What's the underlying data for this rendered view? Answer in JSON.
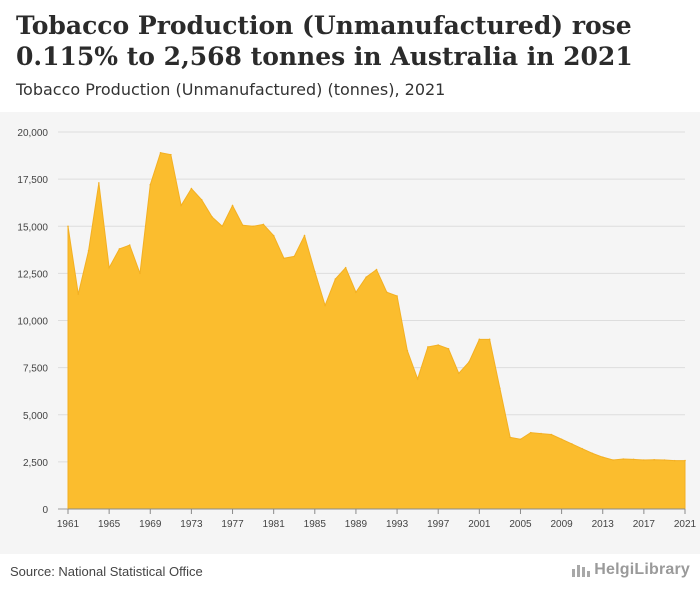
{
  "header": {
    "title": "Tobacco Production (Unmanufactured) rose 0.115% to 2,568 tonnes in Australia in 2021",
    "subtitle": "Tobacco Production (Unmanufactured) (tonnes), 2021"
  },
  "footer": {
    "source": "Source: National Statistical Office",
    "logo_text": "HelgiLibrary"
  },
  "colors": {
    "area_fill": "#fbbd2e",
    "area_stroke": "#f3b023",
    "grid": "#dddddd",
    "plot_background": "#f5f5f5"
  },
  "chart_data": {
    "type": "area",
    "title": "Tobacco Production (Unmanufactured) rose 0.115% to 2,568 tonnes in Australia in 2021",
    "subtitle": "Tobacco Production (Unmanufactured) (tonnes), 2021",
    "xlabel": "",
    "ylabel": "",
    "xlim": [
      1961,
      2021
    ],
    "ylim": [
      0,
      20000
    ],
    "grid": true,
    "y_ticks": [
      0,
      2500,
      5000,
      7500,
      10000,
      12500,
      15000,
      17500,
      20000
    ],
    "y_tick_labels": [
      "0",
      "2,500",
      "5,000",
      "7,500",
      "10,000",
      "12,500",
      "15,000",
      "17,500",
      "20,000"
    ],
    "x_ticks": [
      1961,
      1965,
      1969,
      1973,
      1977,
      1981,
      1985,
      1989,
      1993,
      1997,
      2001,
      2005,
      2009,
      2013,
      2017,
      2021
    ],
    "x_tick_labels": [
      "1961",
      "1965",
      "1969",
      "1973",
      "1977",
      "1981",
      "1985",
      "1989",
      "1993",
      "1997",
      "2001",
      "2005",
      "2009",
      "2013",
      "2017",
      "2021"
    ],
    "x": [
      1961,
      1962,
      1963,
      1964,
      1965,
      1966,
      1967,
      1968,
      1969,
      1970,
      1971,
      1972,
      1973,
      1974,
      1975,
      1976,
      1977,
      1978,
      1979,
      1980,
      1981,
      1982,
      1983,
      1984,
      1985,
      1986,
      1987,
      1988,
      1989,
      1990,
      1991,
      1992,
      1993,
      1994,
      1995,
      1996,
      1997,
      1998,
      1999,
      2000,
      2001,
      2002,
      2003,
      2004,
      2005,
      2006,
      2007,
      2008,
      2009,
      2010,
      2011,
      2012,
      2013,
      2014,
      2015,
      2016,
      2017,
      2018,
      2019,
      2020,
      2021
    ],
    "values": [
      15000,
      11400,
      13700,
      17300,
      12800,
      13800,
      14000,
      12500,
      17200,
      18900,
      18800,
      16100,
      17000,
      16400,
      15500,
      15000,
      16100,
      15050,
      15000,
      15100,
      14500,
      13300,
      13400,
      14500,
      12600,
      10800,
      12200,
      12800,
      11500,
      12300,
      12700,
      11500,
      11300,
      8400,
      6900,
      8600,
      8700,
      8500,
      7200,
      7800,
      9000,
      9000,
      6400,
      3800,
      3700,
      4050,
      4000,
      3950,
      3700,
      3450,
      3200,
      2950,
      2750,
      2600,
      2650,
      2630,
      2600,
      2610,
      2600,
      2565,
      2568
    ]
  }
}
